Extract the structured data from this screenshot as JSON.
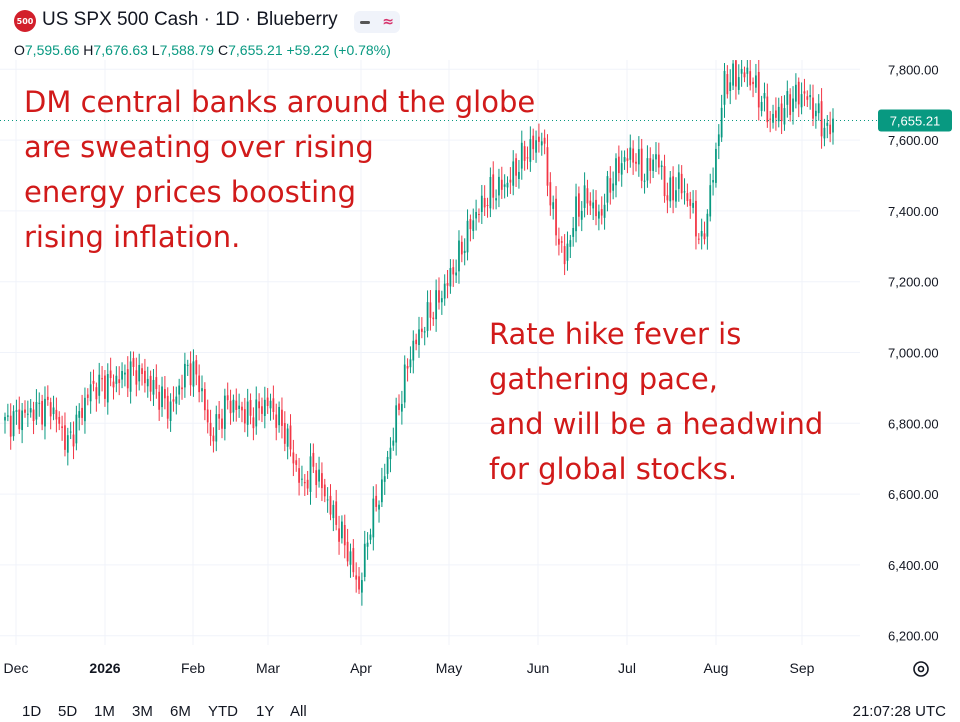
{
  "header": {
    "badge": "500",
    "symbol_line": "US SPX 500 Cash · 1D · Blueberry",
    "ohlc": {
      "o_label": "O",
      "o": "7,595.66",
      "h_label": "H",
      "h": "7,676.63",
      "l_label": "L",
      "l": "7,588.79",
      "c_label": "C",
      "c": "7,655.21",
      "change": "+59.22 (+0.78%)"
    }
  },
  "annotations": {
    "left": "DM central banks around the globe\nare sweating over rising\nenergy prices boosting\nrising inflation.",
    "right": "Rate hike fever is\ngathering pace,\nand will be a headwind\nfor global stocks."
  },
  "chart_data": {
    "type": "candlestick",
    "y_ticks": [
      6200,
      6400,
      6600,
      6800,
      7000,
      7200,
      7400,
      7600,
      7800
    ],
    "y_tick_labels": [
      "6,200.00",
      "6,400.00",
      "6,600.00",
      "6,800.00",
      "7,000.00",
      "7,200.00",
      "7,400.00",
      "7,600.00",
      "7,800.00"
    ],
    "x_labels": [
      "Dec",
      "2026",
      "Feb",
      "Mar",
      "Apr",
      "May",
      "Jun",
      "Jul",
      "Aug",
      "Sep"
    ],
    "last_price": 7655.21,
    "last_price_label": "7,655.21",
    "ylim": [
      6120,
      7840
    ],
    "grid": true,
    "approx_close_path": [
      [
        0,
        6800
      ],
      [
        8,
        6830
      ],
      [
        16,
        6850
      ],
      [
        22,
        6740
      ],
      [
        30,
        6900
      ],
      [
        38,
        6920
      ],
      [
        46,
        6950
      ],
      [
        52,
        6900
      ],
      [
        58,
        6840
      ],
      [
        64,
        6960
      ],
      [
        68,
        6920
      ],
      [
        72,
        6760
      ],
      [
        78,
        6860
      ],
      [
        86,
        6820
      ],
      [
        92,
        6860
      ],
      [
        98,
        6780
      ],
      [
        104,
        6620
      ],
      [
        108,
        6680
      ],
      [
        114,
        6560
      ],
      [
        120,
        6440
      ],
      [
        124,
        6330
      ],
      [
        128,
        6520
      ],
      [
        132,
        6620
      ],
      [
        138,
        6850
      ],
      [
        142,
        7000
      ],
      [
        148,
        7100
      ],
      [
        152,
        7150
      ],
      [
        158,
        7250
      ],
      [
        164,
        7380
      ],
      [
        170,
        7450
      ],
      [
        176,
        7480
      ],
      [
        182,
        7560
      ],
      [
        188,
        7610
      ],
      [
        192,
        7380
      ],
      [
        196,
        7260
      ],
      [
        200,
        7400
      ],
      [
        204,
        7440
      ],
      [
        208,
        7380
      ],
      [
        212,
        7480
      ],
      [
        216,
        7540
      ],
      [
        220,
        7560
      ],
      [
        224,
        7500
      ],
      [
        228,
        7560
      ],
      [
        232,
        7440
      ],
      [
        236,
        7480
      ],
      [
        240,
        7420
      ],
      [
        244,
        7300
      ],
      [
        248,
        7500
      ],
      [
        252,
        7760
      ],
      [
        256,
        7780
      ],
      [
        260,
        7790
      ],
      [
        264,
        7730
      ],
      [
        268,
        7660
      ],
      [
        272,
        7680
      ],
      [
        276,
        7720
      ],
      [
        280,
        7730
      ],
      [
        284,
        7680
      ],
      [
        288,
        7620
      ],
      [
        290,
        7655
      ]
    ]
  },
  "bottom": {
    "ranges": [
      "1D",
      "5D",
      "1M",
      "3M",
      "6M",
      "YTD",
      "1Y",
      "All"
    ],
    "time": "21:07:28 UTC"
  },
  "colors": {
    "up": "#089981",
    "down": "#f23645",
    "annotation": "#d11a1a",
    "price_label_bg": "#089981"
  }
}
